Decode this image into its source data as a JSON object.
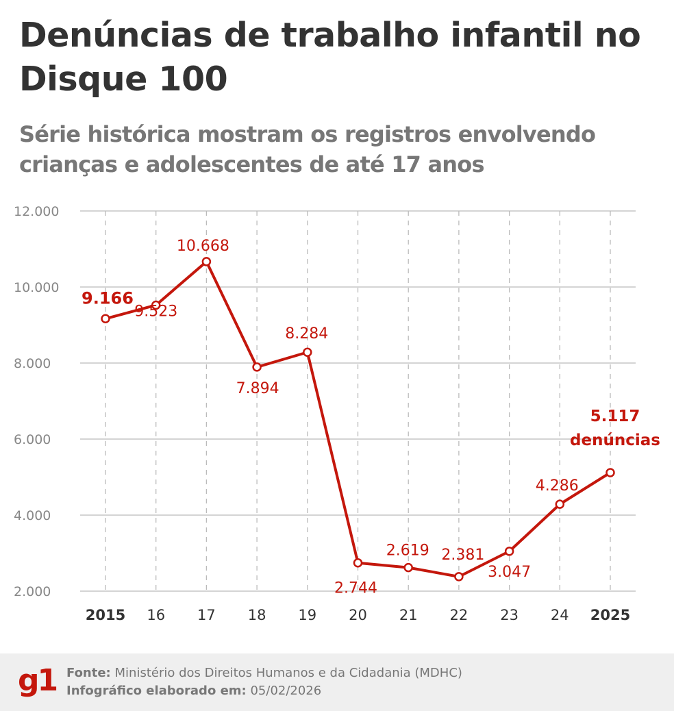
{
  "header": {
    "title": "Denúncias de trabalho infantil no Disque 100",
    "subtitle": "Série histórica mostram os registros envolvendo crianças e adolescentes de até 17 anos"
  },
  "chart_data": {
    "type": "line",
    "title": "Denúncias de trabalho infantil no Disque 100",
    "subtitle": "Série histórica mostram os registros envolvendo crianças e adolescentes de até 17 anos",
    "categories": [
      "2015",
      "16",
      "17",
      "18",
      "19",
      "20",
      "21",
      "22",
      "23",
      "24",
      "2025"
    ],
    "values": [
      9166,
      9523,
      10668,
      7894,
      8284,
      2744,
      2619,
      2381,
      3047,
      4286,
      5117
    ],
    "data_labels": [
      "9.166",
      "9.523",
      "10.668",
      "7.894",
      "8.284",
      "2.744",
      "2.619",
      "2.381",
      "3.047",
      "4.286",
      "5.117"
    ],
    "last_label_suffix": "denúncias",
    "yticks": [
      "2.000",
      "4.000",
      "6.000",
      "8.000",
      "10.000",
      "12.000"
    ],
    "ytick_values": [
      2000,
      4000,
      6000,
      8000,
      10000,
      12000
    ],
    "ylim": [
      2000,
      12000
    ],
    "grid": true,
    "xlabel": "",
    "ylabel": "",
    "colors": {
      "line": "#c4170c",
      "grid": "#bbbbbb",
      "axis_text": "#888888"
    }
  },
  "footer": {
    "logo": "g1",
    "source_label": "Fonte:",
    "source": "Ministério dos Direitos Humanos e da Cidadania (MDHC)",
    "date_label": "Infográfico elaborado em:",
    "date": "05/02/2026"
  }
}
